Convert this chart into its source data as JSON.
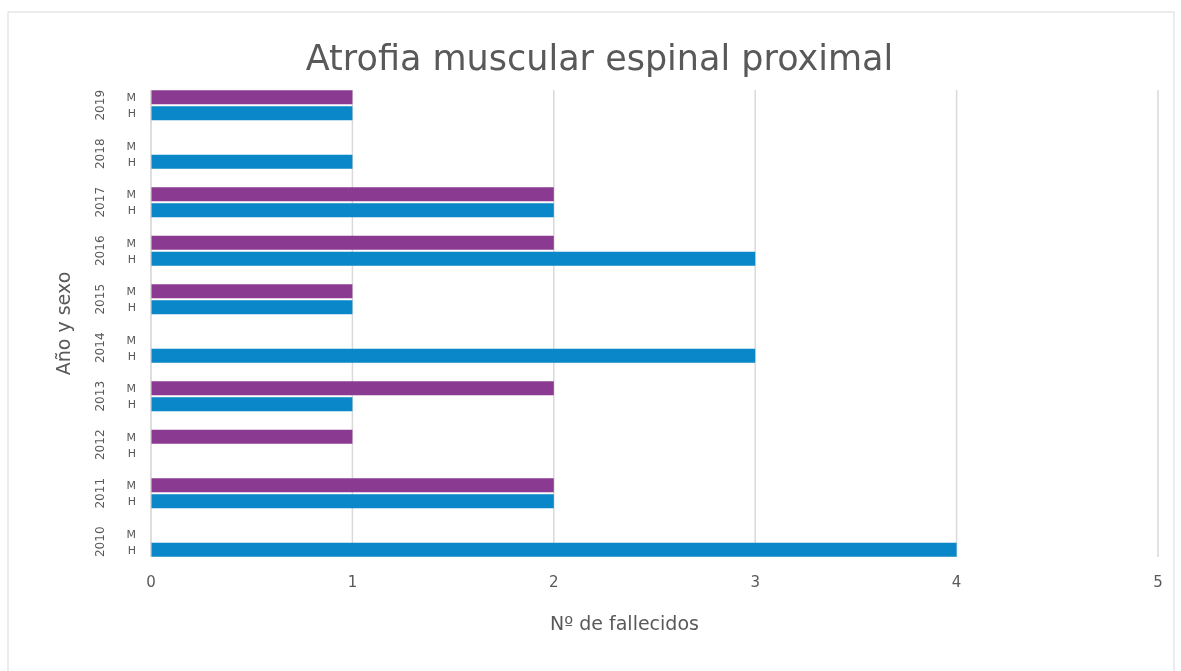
{
  "chart_data": {
    "type": "bar",
    "orientation": "horizontal",
    "title": "Atrofia muscular espinal proximal",
    "xlabel": "Nº de fallecidos",
    "ylabel": "Año y sexo",
    "categories": [
      "2019",
      "2018",
      "2017",
      "2016",
      "2015",
      "2014",
      "2013",
      "2012",
      "2011",
      "2010"
    ],
    "series": [
      {
        "name": "M",
        "color": "#8b3a92",
        "values": [
          1,
          0,
          2,
          2,
          1,
          0,
          2,
          1,
          2,
          0
        ]
      },
      {
        "name": "H",
        "color": "#0a87c8",
        "values": [
          1,
          1,
          2,
          3,
          1,
          3,
          1,
          0,
          2,
          4
        ]
      }
    ],
    "xlim": [
      0,
      5
    ],
    "xticks": [
      0,
      1,
      2,
      3,
      4,
      5
    ],
    "grid": "x",
    "legend": false
  }
}
